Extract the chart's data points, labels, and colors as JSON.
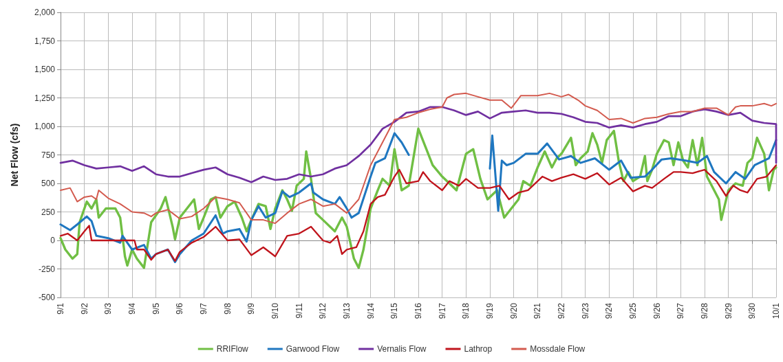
{
  "chart_data": {
    "type": "line",
    "ylabel": "Net Flow (cfs)",
    "xlim": [
      "--09-01",
      "--10-01"
    ],
    "xticks": [
      {
        "value": "--09-01",
        "label": "9/1"
      },
      {
        "value": "--09-02",
        "label": "9/2"
      },
      {
        "value": "--09-03",
        "label": "9/3"
      },
      {
        "value": "--09-04",
        "label": "9/4"
      },
      {
        "value": "--09-05",
        "label": "9/5"
      },
      {
        "value": "--09-06",
        "label": "9/6"
      },
      {
        "value": "--09-07",
        "label": "9/7"
      },
      {
        "value": "--09-08",
        "label": "9/8"
      },
      {
        "value": "--09-09",
        "label": "9/9"
      },
      {
        "value": "--09-10",
        "label": "9/10"
      },
      {
        "value": "--09-11",
        "label": "9/11"
      },
      {
        "value": "--09-12",
        "label": "9/12"
      },
      {
        "value": "--09-13",
        "label": "9/13"
      },
      {
        "value": "--09-14",
        "label": "9/14"
      },
      {
        "value": "--09-15",
        "label": "9/15"
      },
      {
        "value": "--09-16",
        "label": "9/16"
      },
      {
        "value": "--09-17",
        "label": "9/17"
      },
      {
        "value": "--09-18",
        "label": "9/18"
      },
      {
        "value": "--09-19",
        "label": "9/19"
      },
      {
        "value": "--09-20",
        "label": "9/20"
      },
      {
        "value": "--09-21",
        "label": "9/21"
      },
      {
        "value": "--09-22",
        "label": "9/22"
      },
      {
        "value": "--09-23",
        "label": "9/23"
      },
      {
        "value": "--09-24",
        "label": "9/24"
      },
      {
        "value": "--09-25",
        "label": "9/25"
      },
      {
        "value": "--09-26",
        "label": "9/26"
      },
      {
        "value": "--09-27",
        "label": "9/27"
      },
      {
        "value": "--09-28",
        "label": "9/28"
      },
      {
        "value": "--09-29",
        "label": "9/29"
      },
      {
        "value": "--09-30",
        "label": "9/30"
      },
      {
        "value": "--10-01",
        "label": "10/1"
      }
    ],
    "ylim": [
      -500,
      2000
    ],
    "yticks": [
      -500,
      -250,
      0,
      250,
      500,
      750,
      {
        "value": 1000,
        "label": "1,000"
      },
      {
        "value": 1250,
        "label": "1,250"
      },
      {
        "value": 1500,
        "label": "1,500"
      },
      {
        "value": 1750,
        "label": "1,750"
      },
      {
        "value": 2000,
        "label": "2,000"
      }
    ],
    "grid": true,
    "legend": "bottom",
    "marker": "none",
    "line_style": "solid",
    "series": [
      {
        "name": "RRIFlow",
        "color": "#70bf44",
        "x": [
          "--09-01",
          "--09-01T04:48",
          "--09-01T12:00",
          "--09-01T16:48",
          "--09-01T19:12",
          "--09-02T02:24",
          "--09-02T07:12",
          "--09-02T12:00",
          "--09-02T14:24",
          "--09-02T21:36",
          "--09-03T07:12",
          "--09-03T12:00",
          "--09-03T16:48",
          "--09-03T19:12",
          "--09-04",
          "--09-04T04:48",
          "--09-04T12:00",
          "--09-04T19:12",
          "--09-05T04:48",
          "--09-05T09:36",
          "--09-05T16:48",
          "--09-05T19:12",
          "--09-06",
          "--09-06T07:12",
          "--09-06T14:24",
          "--09-06T19:12",
          "--09-07",
          "--09-07T07:12",
          "--09-07T12:00",
          "--09-07T16:48",
          "--09-08",
          "--09-08T07:12",
          "--09-08T14:24",
          "--09-08T19:12",
          "--09-09",
          "--09-09T07:12",
          "--09-09T14:24",
          "--09-09T19:12",
          "--09-10",
          "--09-10T07:12",
          "--09-10T12:00",
          "--09-10T16:48",
          "--09-10T21:36",
          "--09-11T04:48",
          "--09-11T07:12",
          "--09-11T12:00",
          "--09-11T16:48",
          "--09-12",
          "--09-12T12:00",
          "--09-12T19:12",
          "--09-13",
          "--09-13T07:12",
          "--09-13T12:00",
          "--09-13T16:48",
          "--09-14",
          "--09-14T07:12",
          "--09-14T12:00",
          "--09-14T19:12",
          "--09-15",
          "--09-15T07:12",
          "--09-15T14:24",
          "--09-16",
          "--09-16T07:12",
          "--09-16T14:24",
          "--09-17",
          "--09-17T09:36",
          "--09-17T14:24",
          "--09-17T19:12",
          "--09-18",
          "--09-18T07:12",
          "--09-18T14:24",
          "--09-18T21:36",
          "--09-19T07:12",
          "--09-19T14:24",
          "--09-19T21:36",
          "--09-20T04:48",
          "--09-20T09:36",
          "--09-20T16:48",
          "--09-21",
          "--09-21T07:12",
          "--09-21T14:24",
          "--09-21T19:12",
          "--09-22",
          "--09-22T09:36",
          "--09-22T14:24",
          "--09-22T19:12",
          "--09-23T02:24",
          "--09-23T07:12",
          "--09-23T12:00",
          "--09-23T16:48",
          "--09-23T21:36",
          "--09-24T04:48",
          "--09-24T09:36",
          "--09-24T14:24",
          "--09-24T19:12",
          "--09-25",
          "--09-25T07:12",
          "--09-25T12:00",
          "--09-25T14:24",
          "--09-25T19:12",
          "--09-26",
          "--09-26T07:12",
          "--09-26T12:00",
          "--09-26T16:48",
          "--09-26T21:36",
          "--09-27T02:24",
          "--09-27T07:12",
          "--09-27T12:00",
          "--09-27T16:48",
          "--09-27T21:36",
          "--09-28T02:24",
          "--09-28T07:12",
          "--09-28T14:24",
          "--09-28T16:48",
          "--09-29",
          "--09-29T07:12",
          "--09-29T14:24",
          "--09-29T19:12",
          "--09-30",
          "--09-30T04:48",
          "--09-30T12:00",
          "--09-30T16:48",
          "--09-30T21:36",
          "--10-01"
        ],
        "values": [
          20,
          -80,
          -160,
          -120,
          160,
          340,
          280,
          360,
          200,
          280,
          280,
          200,
          -140,
          -220,
          -80,
          -160,
          -240,
          160,
          280,
          380,
          120,
          10,
          200,
          280,
          360,
          100,
          200,
          360,
          380,
          200,
          300,
          340,
          200,
          80,
          180,
          320,
          300,
          100,
          280,
          440,
          360,
          260,
          480,
          540,
          780,
          540,
          240,
          180,
          80,
          200,
          120,
          -160,
          -240,
          -80,
          280,
          440,
          540,
          480,
          800,
          440,
          480,
          980,
          820,
          660,
          560,
          480,
          440,
          600,
          760,
          800,
          540,
          360,
          440,
          200,
          280,
          360,
          520,
          480,
          640,
          780,
          640,
          720,
          760,
          900,
          660,
          720,
          780,
          940,
          840,
          680,
          880,
          960,
          700,
          520,
          600,
          520,
          560,
          740,
          520,
          620,
          760,
          880,
          860,
          660,
          860,
          700,
          640,
          880,
          660,
          900,
          560,
          480,
          360,
          180,
          440,
          500,
          480,
          680,
          720,
          900,
          760,
          440,
          620,
          640
        ]
      },
      {
        "name": "Garwood Flow",
        "color": "#1f77c0",
        "x": [
          "--09-01",
          "--09-01T09:36",
          "--09-01T16:48",
          "--09-02T02:24",
          "--09-02T07:12",
          "--09-02T12:00",
          "--09-03",
          "--09-03T12:00",
          "--09-03T14:24",
          "--09-04",
          "--09-04T12:00",
          "--09-04T19:12",
          "--09-05",
          "--09-05T12:00",
          "--09-05T19:12",
          "--09-06",
          "--09-06T12:00",
          "--09-07",
          "--09-07T12:00",
          "--09-07T19:12",
          "--09-08",
          "--09-08T12:00",
          "--09-08T19:12",
          "--09-09",
          "--09-09T07:12",
          "--09-09T14:24",
          "--09-10",
          "--09-10T07:12",
          "--09-10T14:24",
          "--09-11",
          "--09-11T12:00",
          "--09-11T14:24",
          "--09-12",
          "--09-12T12:00",
          "--09-12T16:48",
          "--09-13",
          "--09-13T04:48",
          "--09-13T12:00",
          "--09-14",
          "--09-14T04:48",
          "--09-14T14:24",
          "--09-15",
          "--09-15T07:12",
          "--09-15T14:24",
          "--09-17",
          "--09-19",
          "--09-19T02:24",
          "--09-19T08:24",
          "--09-19T12:00",
          "--09-19T16:48",
          "--09-20",
          "--09-20T12:00",
          "--09-21",
          "--09-21T09:36",
          "--09-21T21:36",
          "--09-22T09:36",
          "--09-22T19:12",
          "--09-23T09:36",
          "--09-24",
          "--09-24T12:00",
          "--09-24T21:36",
          "--09-25T12:00",
          "--09-25T19:12",
          "--09-26T04:48",
          "--09-26T14:24",
          "--09-27T04:48",
          "--09-27T16:48",
          "--09-28T02:24",
          "--09-28T09:36",
          "--09-28T21:36",
          "--09-29T07:12",
          "--09-29T16:48",
          "--09-30T02:24",
          "--09-30T16:48",
          "--10-01"
        ],
        "values": [
          140,
          90,
          140,
          210,
          170,
          40,
          20,
          -20,
          40,
          -80,
          -40,
          -160,
          -120,
          -80,
          -190,
          -120,
          0,
          60,
          220,
          60,
          80,
          100,
          -10,
          180,
          300,
          200,
          240,
          430,
          380,
          420,
          500,
          420,
          360,
          320,
          380,
          280,
          200,
          240,
          560,
          680,
          720,
          940,
          860,
          750,
          null,
          630,
          920,
          260,
          700,
          660,
          680,
          760,
          760,
          850,
          710,
          740,
          680,
          720,
          620,
          700,
          550,
          560,
          620,
          710,
          720,
          700,
          680,
          740,
          600,
          500,
          600,
          540,
          660,
          720,
          880
        ]
      },
      {
        "name": "Vernalis Flow",
        "color": "#7030a0",
        "x": [
          "--09-01",
          "--09-01T12:00",
          "--09-02",
          "--09-02T12:00",
          "--09-03",
          "--09-03T12:00",
          "--09-04",
          "--09-04T12:00",
          "--09-05",
          "--09-05T12:00",
          "--09-06",
          "--09-06T12:00",
          "--09-07",
          "--09-07T12:00",
          "--09-08",
          "--09-08T12:00",
          "--09-09",
          "--09-09T12:00",
          "--09-10",
          "--09-10T12:00",
          "--09-11",
          "--09-11T12:00",
          "--09-12",
          "--09-12T12:00",
          "--09-13",
          "--09-13T12:00",
          "--09-14",
          "--09-14T12:00",
          "--09-15",
          "--09-15T12:00",
          "--09-16",
          "--09-16T12:00",
          "--09-17",
          "--09-17T12:00",
          "--09-18",
          "--09-18T12:00",
          "--09-19",
          "--09-19T12:00",
          "--09-20",
          "--09-20T12:00",
          "--09-21",
          "--09-21T12:00",
          "--09-22",
          "--09-22T12:00",
          "--09-23",
          "--09-23T12:00",
          "--09-24",
          "--09-24T12:00",
          "--09-25",
          "--09-25T12:00",
          "--09-26",
          "--09-26T12:00",
          "--09-27",
          "--09-27T12:00",
          "--09-28",
          "--09-28T12:00",
          "--09-29",
          "--09-29T12:00",
          "--09-30",
          "--09-30T12:00",
          "--10-01",
          "--10-01"
        ],
        "values": [
          680,
          700,
          660,
          630,
          640,
          650,
          610,
          650,
          580,
          560,
          560,
          590,
          620,
          640,
          580,
          550,
          510,
          560,
          530,
          540,
          580,
          560,
          580,
          630,
          660,
          740,
          840,
          980,
          1040,
          1120,
          1130,
          1170,
          1170,
          1140,
          1100,
          1130,
          1070,
          1120,
          1130,
          1140,
          1120,
          1120,
          1110,
          1080,
          1040,
          1030,
          990,
          1010,
          990,
          1020,
          1040,
          1090,
          1090,
          1130,
          1150,
          1130,
          1100,
          1120,
          1050,
          1030,
          1020,
          680
        ]
      },
      {
        "name": "Lathrop",
        "color": "#c0141c",
        "x": [
          "--09-01",
          "--09-01T07:12",
          "--09-01T16:48",
          "--09-02",
          "--09-02T04:48",
          "--09-02T07:12",
          "--09-04T02:24",
          "--09-04T04:48",
          "--09-04T12:00",
          "--09-04T19:12",
          "--09-05",
          "--09-05T12:00",
          "--09-05T19:12",
          "--09-06",
          "--09-06T12:00",
          "--09-07",
          "--09-07T12:00",
          "--09-08",
          "--09-08T12:00",
          "--09-09",
          "--09-09T12:00",
          "--09-10",
          "--09-10T12:00",
          "--09-11",
          "--09-11T12:00",
          "--09-12",
          "--09-12T07:12",
          "--09-12T14:24",
          "--09-12T19:12",
          "--09-13",
          "--09-13T09:36",
          "--09-13T16:48",
          "--09-14",
          "--09-14T07:12",
          "--09-14T14:24",
          "--09-15",
          "--09-15T04:48",
          "--09-15T12:00",
          "--09-16",
          "--09-16T04:48",
          "--09-16T12:00",
          "--09-17",
          "--09-17T07:12",
          "--09-17T16:48",
          "--09-18",
          "--09-18T12:00",
          "--09-19",
          "--09-19T09:36",
          "--09-19T19:12",
          "--09-20T04:48",
          "--09-20T14:24",
          "--09-21T04:48",
          "--09-21T14:24",
          "--09-22",
          "--09-22T12:00",
          "--09-23",
          "--09-23T12:00",
          "--09-24",
          "--09-24T12:00",
          "--09-25",
          "--09-25T12:00",
          "--09-25T19:12",
          "--09-26T07:12",
          "--09-26T16:48",
          "--09-27",
          "--09-27T12:00",
          "--09-28",
          "--09-28T12:00",
          "--09-28T21:36",
          "--09-29T04:48",
          "--09-29T12:00",
          "--09-29T19:12",
          "--09-30T04:48",
          "--09-30T14:24",
          "--10-01"
        ],
        "values": [
          40,
          60,
          0,
          80,
          130,
          0,
          0,
          -80,
          -80,
          -170,
          -120,
          -80,
          -180,
          -100,
          -20,
          30,
          120,
          0,
          10,
          -130,
          -60,
          -140,
          40,
          60,
          120,
          0,
          -20,
          40,
          -120,
          -80,
          -60,
          80,
          320,
          380,
          400,
          560,
          620,
          500,
          520,
          600,
          520,
          440,
          520,
          480,
          540,
          460,
          460,
          480,
          360,
          420,
          440,
          560,
          520,
          550,
          580,
          540,
          590,
          490,
          550,
          430,
          480,
          460,
          540,
          600,
          600,
          590,
          620,
          520,
          390,
          480,
          440,
          420,
          540,
          560,
          660
        ]
      },
      {
        "name": "Mossdale Flow",
        "color": "#d35a4e",
        "x": [
          "--09-01",
          "--09-01T09:36",
          "--09-01T16:48",
          "--09-02",
          "--09-02T07:12",
          "--09-02T12:00",
          "--09-02T14:24",
          "--09-03",
          "--09-03T12:00",
          "--09-04",
          "--09-04T12:00",
          "--09-04T19:12",
          "--09-05",
          "--09-05T12:00",
          "--09-06",
          "--09-06T12:00",
          "--09-07",
          "--09-07T12:00",
          "--09-08",
          "--09-08T12:00",
          "--09-09",
          "--09-09T12:00",
          "--09-10",
          "--09-10T12:00",
          "--09-11",
          "--09-11T12:00",
          "--09-12",
          "--09-12T12:00",
          "--09-13",
          "--09-13T12:00",
          "--09-14",
          "--09-14T12:00",
          "--09-15",
          "--09-15T12:00",
          "--09-16",
          "--09-16T12:00",
          "--09-17",
          "--09-17T04:48",
          "--09-17T12:00",
          "--09-18",
          "--09-18T12:00",
          "--09-19",
          "--09-19T12:00",
          "--09-19T21:36",
          "--09-20T07:12",
          "--09-21",
          "--09-21T12:00",
          "--09-22",
          "--09-22T07:12",
          "--09-22T16:48",
          "--09-23",
          "--09-23T12:00",
          "--09-24",
          "--09-24T12:00",
          "--09-25",
          "--09-25T12:00",
          "--09-26",
          "--09-26T12:00",
          "--09-27",
          "--09-27T12:00",
          "--09-28",
          "--09-28T12:00",
          "--09-29",
          "--09-29T07:12",
          "--09-29T12:00",
          "--09-30",
          "--09-30T12:00",
          "--09-30T19:12",
          "--10-01"
        ],
        "values": [
          440,
          460,
          340,
          380,
          390,
          360,
          440,
          370,
          320,
          250,
          240,
          210,
          240,
          270,
          190,
          210,
          280,
          380,
          360,
          330,
          180,
          180,
          150,
          240,
          320,
          360,
          300,
          320,
          240,
          360,
          660,
          860,
          1060,
          1080,
          1120,
          1150,
          1170,
          1250,
          1280,
          1290,
          1260,
          1230,
          1230,
          1160,
          1270,
          1270,
          1290,
          1260,
          1280,
          1230,
          1180,
          1140,
          1060,
          1070,
          1030,
          1070,
          1080,
          1110,
          1130,
          1130,
          1160,
          1160,
          1100,
          1170,
          1180,
          1180,
          1200,
          1180,
          1200
        ]
      }
    ]
  }
}
